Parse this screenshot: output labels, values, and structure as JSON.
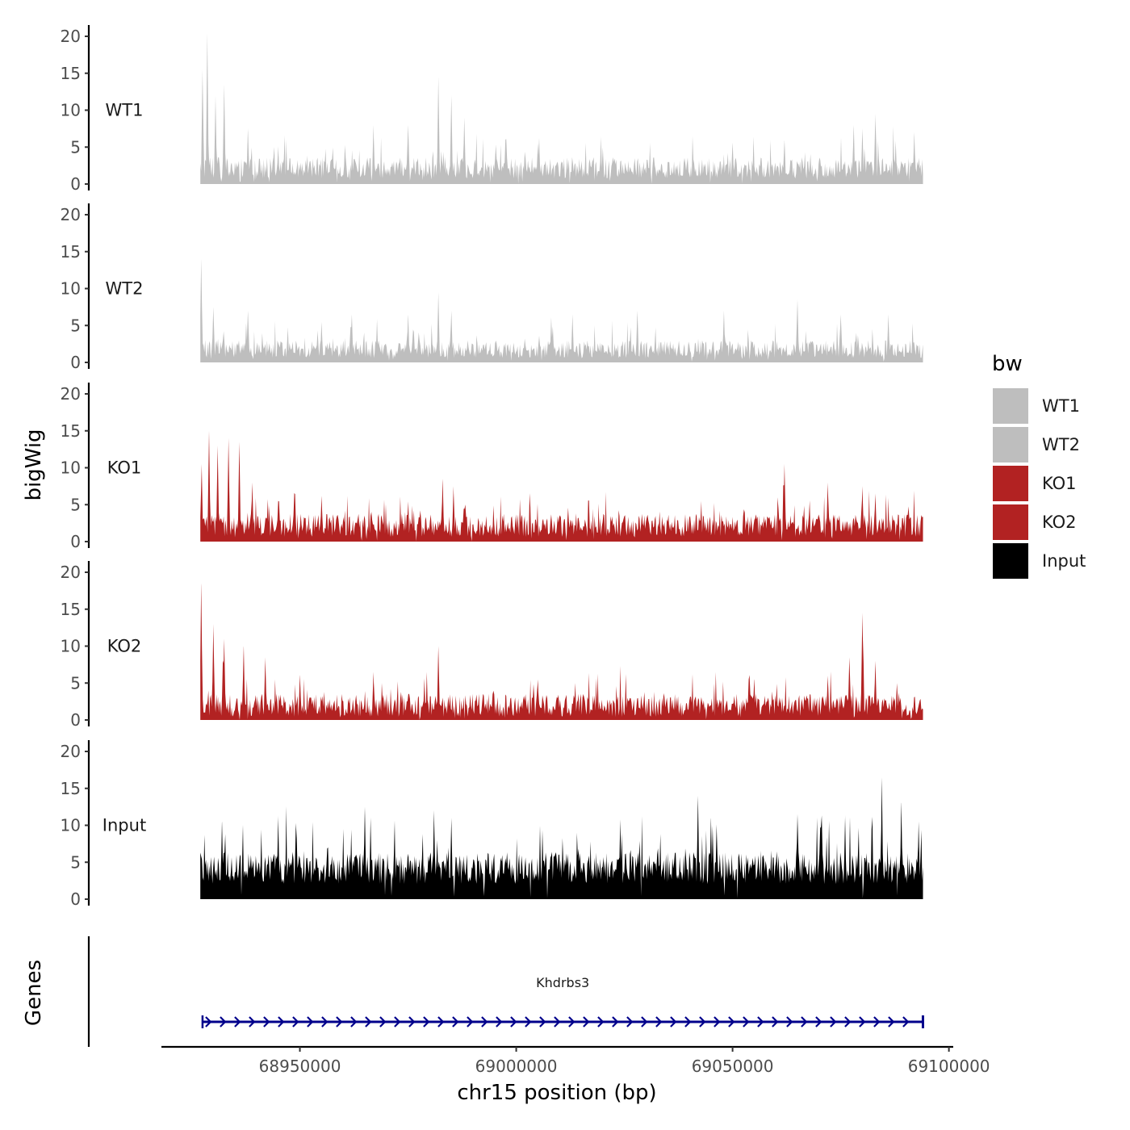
{
  "chart_data": {
    "type": "area",
    "title": "",
    "xlabel": "chr15 position (bp)",
    "ylabel": "bigWig",
    "genes_label": "Genes",
    "xlim": [
      68918000,
      69101000
    ],
    "x_range_covered": [
      68927000,
      69094000
    ],
    "x_ticks": [
      68950000,
      69000000,
      69050000,
      69100000
    ],
    "x_tick_labels": [
      "68950000",
      "69000000",
      "69050000",
      "69100000"
    ],
    "ylim": [
      0,
      21
    ],
    "y_ticks": [
      0,
      5,
      10,
      15,
      20
    ],
    "y_tick_labels": [
      "0",
      "5",
      "10",
      "15",
      "20"
    ],
    "grid": false,
    "legend_title": "bw",
    "legend_position": "right",
    "series": [
      {
        "name": "WT1",
        "color": "#bebebe",
        "baseline": 2.2,
        "noise": 2.4,
        "peaks": [
          [
            68927500,
            15.5
          ],
          [
            68928600,
            20.5
          ],
          [
            68930500,
            12
          ],
          [
            68932500,
            13.5
          ],
          [
            68938000,
            7.5
          ],
          [
            68945000,
            5
          ],
          [
            68967000,
            8
          ],
          [
            68975000,
            8
          ],
          [
            68982000,
            14.5
          ],
          [
            68985000,
            12
          ],
          [
            68988000,
            9
          ],
          [
            69005000,
            5.5
          ],
          [
            69020000,
            5
          ],
          [
            69050000,
            5.5
          ],
          [
            69062000,
            6
          ],
          [
            69078000,
            8
          ],
          [
            69080000,
            7.5
          ],
          [
            69083000,
            9.5
          ],
          [
            69092000,
            7
          ]
        ]
      },
      {
        "name": "WT2",
        "color": "#bebebe",
        "baseline": 1.8,
        "noise": 2.0,
        "peaks": [
          [
            68927200,
            14
          ],
          [
            68930000,
            7.5
          ],
          [
            68938000,
            7
          ],
          [
            68955000,
            5.5
          ],
          [
            68962000,
            6.5
          ],
          [
            68975000,
            6.5
          ],
          [
            68982000,
            9.5
          ],
          [
            68985000,
            7
          ],
          [
            69013000,
            6.5
          ],
          [
            69028000,
            7
          ],
          [
            69048000,
            7
          ],
          [
            69065000,
            8.5
          ],
          [
            69075000,
            6.5
          ],
          [
            69086000,
            6.5
          ]
        ]
      },
      {
        "name": "KO1",
        "color": "#b22222",
        "baseline": 2.2,
        "noise": 2.6,
        "peaks": [
          [
            68927300,
            10.5
          ],
          [
            68929000,
            15
          ],
          [
            68931000,
            13
          ],
          [
            68933500,
            14
          ],
          [
            68936000,
            13.5
          ],
          [
            68939000,
            8
          ],
          [
            68945000,
            5.5
          ],
          [
            68955000,
            6
          ],
          [
            68983000,
            8.5
          ],
          [
            68985500,
            7.5
          ],
          [
            69012000,
            4.5
          ],
          [
            69062000,
            10.5
          ],
          [
            69072000,
            8
          ],
          [
            69080000,
            7.5
          ],
          [
            69083000,
            6.5
          ]
        ]
      },
      {
        "name": "KO2",
        "color": "#b22222",
        "baseline": 2.0,
        "noise": 2.6,
        "peaks": [
          [
            68927200,
            18.5
          ],
          [
            68930000,
            13
          ],
          [
            68932500,
            11
          ],
          [
            68937000,
            10
          ],
          [
            68942000,
            8.5
          ],
          [
            68950000,
            6
          ],
          [
            68967000,
            6.5
          ],
          [
            68982000,
            10
          ],
          [
            69005000,
            5.5
          ],
          [
            69055000,
            5.5
          ],
          [
            69072000,
            6
          ],
          [
            69077000,
            8.5
          ],
          [
            69080000,
            14.5
          ],
          [
            69083000,
            8
          ],
          [
            69088000,
            5
          ]
        ]
      },
      {
        "name": "Input",
        "color": "#000000",
        "baseline": 4.2,
        "noise": 3.6,
        "peaks": [
          [
            68932000,
            10.5
          ],
          [
            68945000,
            11
          ],
          [
            68965000,
            12.5
          ],
          [
            68981000,
            12
          ],
          [
            68985000,
            11
          ],
          [
            69042000,
            14
          ],
          [
            69045000,
            11
          ],
          [
            69065000,
            11.5
          ],
          [
            69076000,
            11
          ],
          [
            69084500,
            16.5
          ],
          [
            69089000,
            13
          ],
          [
            69093000,
            10.5
          ]
        ]
      }
    ],
    "genes": [
      {
        "name": "Khdrbs3",
        "start": 68927500,
        "end": 69094000,
        "strand": "+",
        "color": "#00008b"
      }
    ]
  }
}
